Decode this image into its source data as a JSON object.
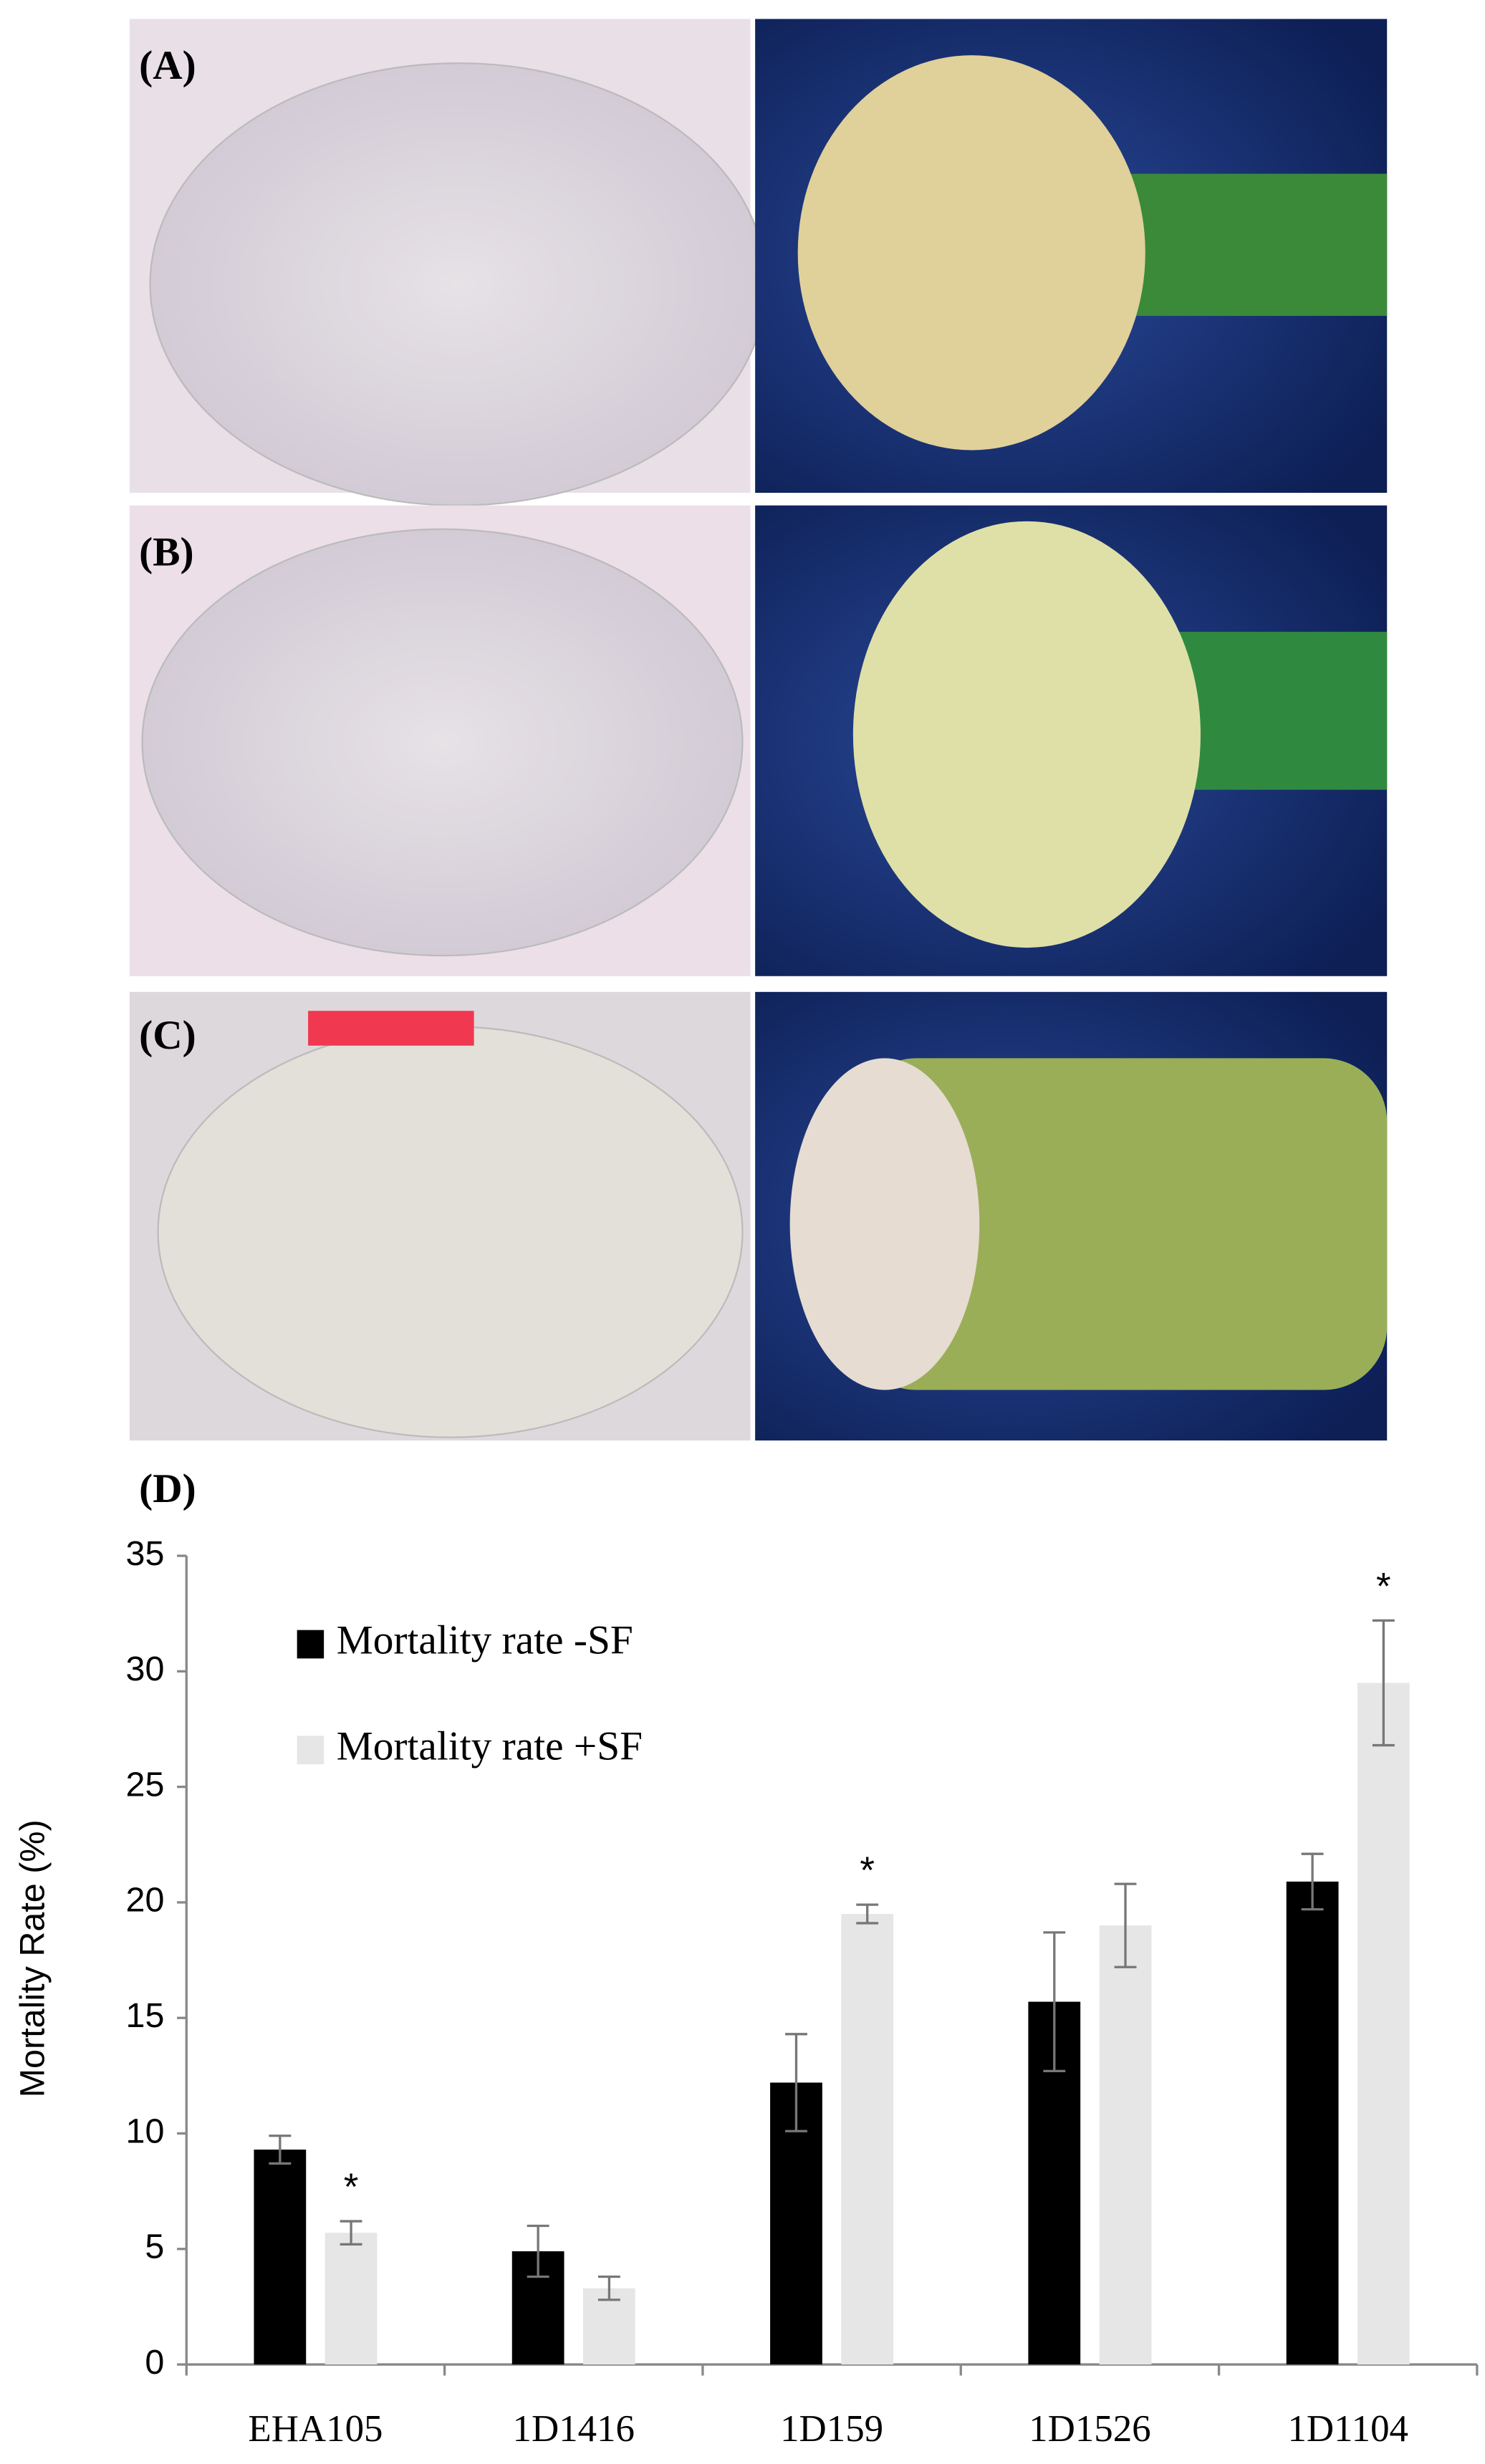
{
  "panels": [
    {
      "label": "(A)"
    },
    {
      "label": "(B)"
    },
    {
      "label": "(C)"
    }
  ],
  "chart_data": {
    "type": "bar",
    "panel_label": "(D)",
    "ylabel": "Mortality Rate (%)",
    "categories": [
      "EHA105",
      "1D1416",
      "1D159",
      "1D1526",
      "1D1104"
    ],
    "series": [
      {
        "name": "Mortality rate -SF",
        "color": "#000000",
        "values": [
          9.3,
          4.9,
          12.2,
          15.7,
          20.9
        ],
        "errors": [
          0.6,
          1.1,
          2.1,
          3.0,
          1.2
        ],
        "markers": [
          null,
          null,
          null,
          null,
          null
        ]
      },
      {
        "name": "Mortality rate +SF",
        "color": "#e6e6e6",
        "values": [
          5.7,
          3.3,
          19.5,
          19.0,
          29.5
        ],
        "errors": [
          0.5,
          0.5,
          0.4,
          1.8,
          2.7
        ],
        "markers": [
          "*",
          null,
          "*",
          null,
          "*"
        ]
      }
    ],
    "ylim": [
      0,
      35
    ],
    "yticks": [
      0,
      5,
      10,
      15,
      20,
      25,
      30,
      35
    ],
    "grid": false,
    "legend": "upper left"
  }
}
